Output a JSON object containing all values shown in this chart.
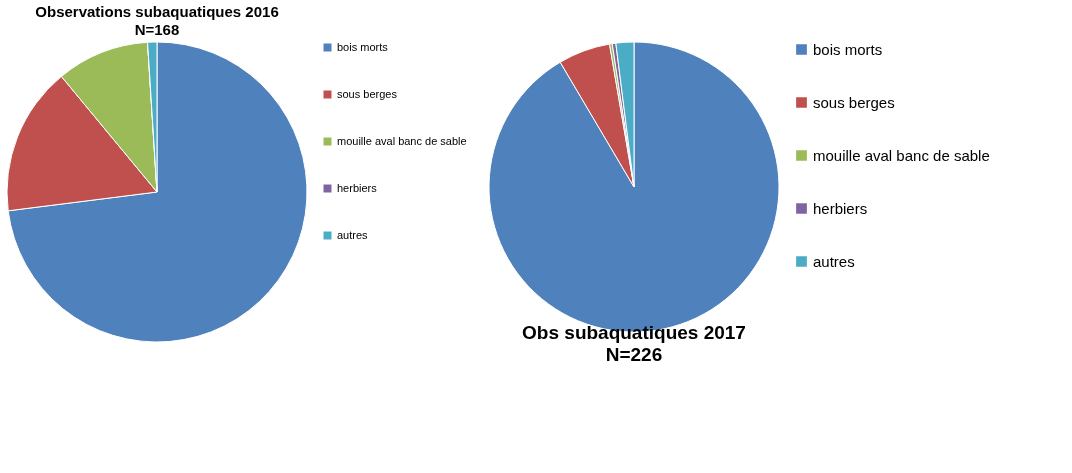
{
  "chart_data": [
    {
      "type": "pie",
      "title": "Observations subaquatiques 2016",
      "subtitle": "N=168",
      "categories": [
        "bois morts",
        "sous berges",
        "mouille aval banc de sable",
        "herbiers",
        "autres"
      ],
      "values": [
        73,
        16,
        10,
        0,
        1
      ],
      "colors": [
        "#4f81bd",
        "#c0504d",
        "#9bbb59",
        "#8064a2",
        "#4bacc6"
      ],
      "legend": "right"
    },
    {
      "type": "pie",
      "title": "Obs subaquatiques 2017",
      "subtitle": "N=226",
      "categories": [
        "bois morts",
        "sous berges",
        "mouille aval banc de sable",
        "herbiers",
        "autres"
      ],
      "values": [
        91.5,
        5.8,
        0.3,
        0.4,
        2.0
      ],
      "colors": [
        "#4f81bd",
        "#c0504d",
        "#9bbb59",
        "#8064a2",
        "#4bacc6"
      ],
      "legend": "right"
    }
  ]
}
